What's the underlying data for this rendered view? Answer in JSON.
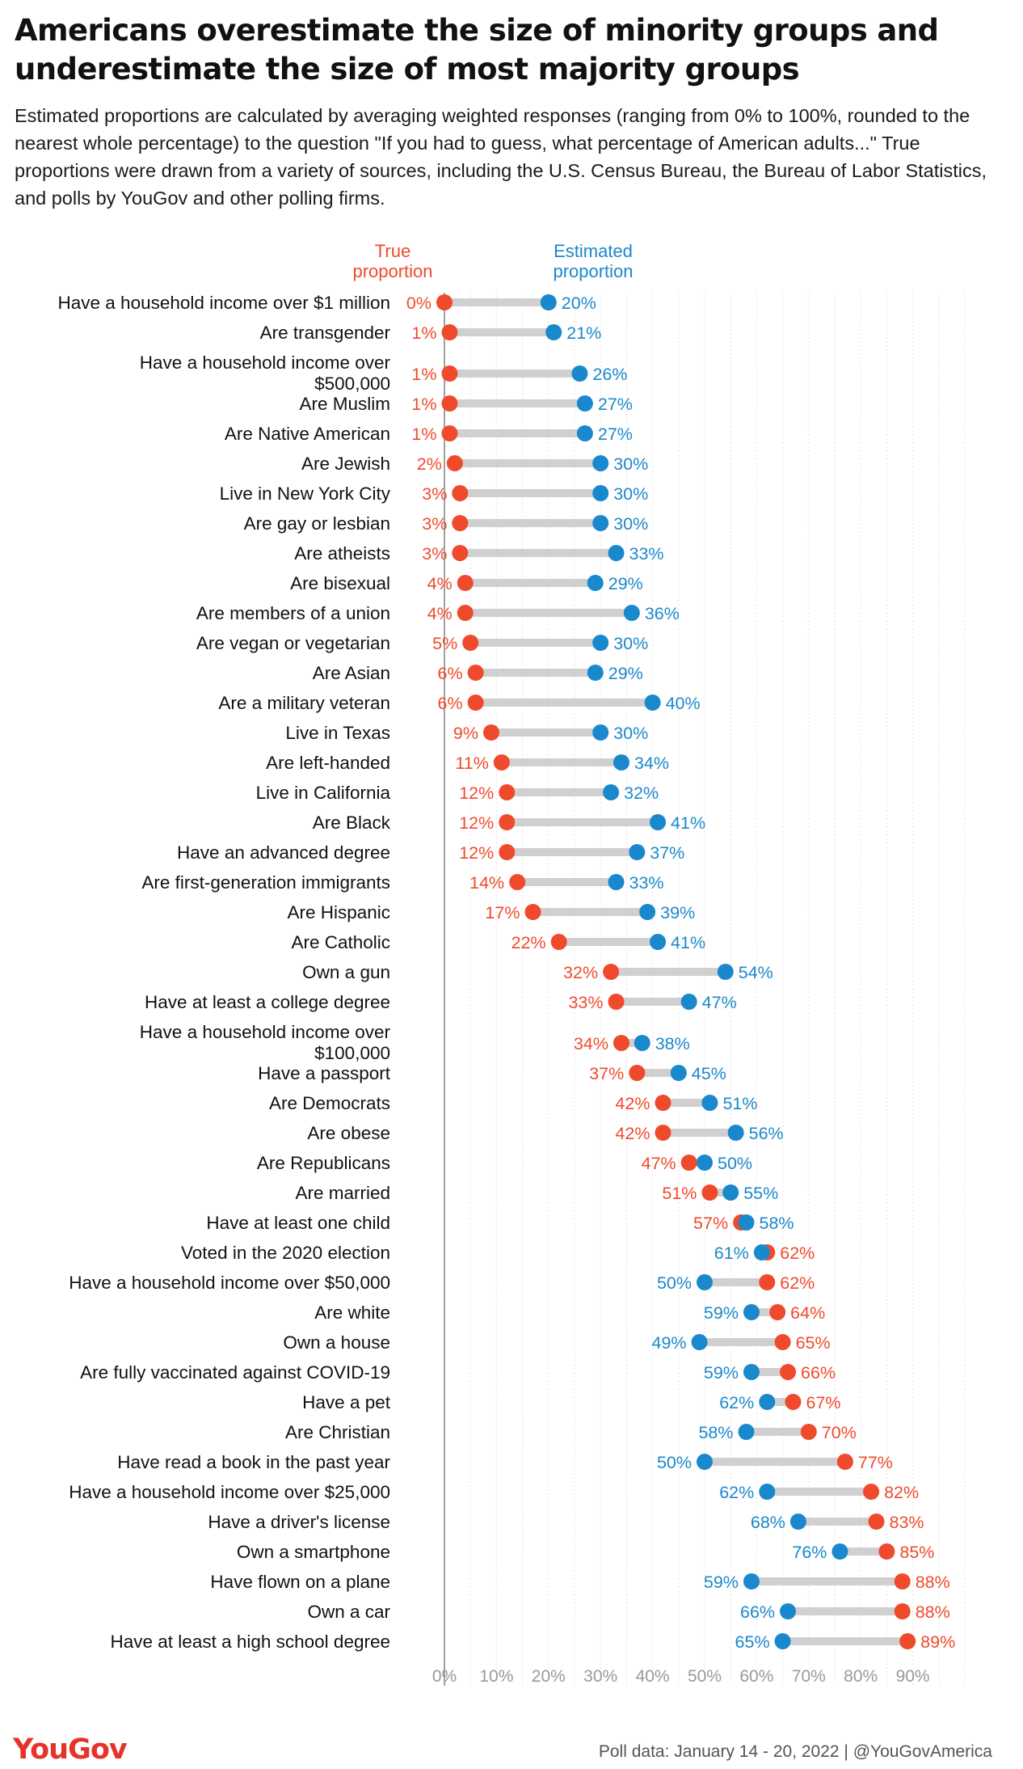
{
  "title": "Americans overestimate the size of minority groups and underestimate the size of most majority groups",
  "subtitle": "Estimated proportions are calculated by averaging weighted responses (ranging from 0% to 100%, rounded to the nearest whole percentage) to the question \"If you had to guess, what percentage of American adults...\" True proportions were drawn from a variety of sources, including the U.S. Census Bureau, the Bureau of Labor Statistics, and polls by YouGov and other polling firms.",
  "footer": {
    "logo": "YouGov",
    "source": "Poll data: January 14 - 20, 2022 | @YouGovAmerica"
  },
  "colors": {
    "true": "#f04a2c",
    "estimated": "#1a88cc",
    "connector": "#d0d0d0",
    "grid": "#e3e3e3",
    "axis": "#888888",
    "tick": "#999999"
  },
  "chart_data": {
    "type": "dumbbell",
    "x_axis": {
      "min": 0,
      "max": 100,
      "ticks": [
        0,
        10,
        20,
        30,
        40,
        50,
        60,
        70,
        80,
        90
      ],
      "tick_suffix": "%"
    },
    "legend": {
      "true": "True proportion",
      "estimated": "Estimated proportion"
    },
    "categories": [
      {
        "label": "Have a household income over $1 million",
        "true": 0,
        "estimated": 20
      },
      {
        "label": "Are transgender",
        "true": 1,
        "estimated": 21
      },
      {
        "label": "Have a household income over $500,000",
        "true": 1,
        "estimated": 26
      },
      {
        "label": "Are Muslim",
        "true": 1,
        "estimated": 27
      },
      {
        "label": "Are Native American",
        "true": 1,
        "estimated": 27
      },
      {
        "label": "Are Jewish",
        "true": 2,
        "estimated": 30
      },
      {
        "label": "Live in New York City",
        "true": 3,
        "estimated": 30
      },
      {
        "label": "Are gay or lesbian",
        "true": 3,
        "estimated": 30
      },
      {
        "label": "Are atheists",
        "true": 3,
        "estimated": 33
      },
      {
        "label": "Are bisexual",
        "true": 4,
        "estimated": 29
      },
      {
        "label": "Are members of a union",
        "true": 4,
        "estimated": 36
      },
      {
        "label": "Are vegan or vegetarian",
        "true": 5,
        "estimated": 30
      },
      {
        "label": "Are Asian",
        "true": 6,
        "estimated": 29
      },
      {
        "label": "Are a military veteran",
        "true": 6,
        "estimated": 40
      },
      {
        "label": "Live in Texas",
        "true": 9,
        "estimated": 30
      },
      {
        "label": "Are left-handed",
        "true": 11,
        "estimated": 34
      },
      {
        "label": "Live in California",
        "true": 12,
        "estimated": 32
      },
      {
        "label": "Are Black",
        "true": 12,
        "estimated": 41
      },
      {
        "label": "Have an advanced degree",
        "true": 12,
        "estimated": 37
      },
      {
        "label": "Are first-generation immigrants",
        "true": 14,
        "estimated": 33
      },
      {
        "label": "Are Hispanic",
        "true": 17,
        "estimated": 39
      },
      {
        "label": "Are Catholic",
        "true": 22,
        "estimated": 41
      },
      {
        "label": "Own a gun",
        "true": 32,
        "estimated": 54
      },
      {
        "label": "Have at least a college degree",
        "true": 33,
        "estimated": 47
      },
      {
        "label": "Have a household income over $100,000",
        "true": 34,
        "estimated": 38
      },
      {
        "label": "Have a passport",
        "true": 37,
        "estimated": 45
      },
      {
        "label": "Are Democrats",
        "true": 42,
        "estimated": 51
      },
      {
        "label": "Are obese",
        "true": 42,
        "estimated": 56
      },
      {
        "label": "Are Republicans",
        "true": 47,
        "estimated": 50
      },
      {
        "label": "Are married",
        "true": 51,
        "estimated": 55
      },
      {
        "label": "Have at least one child",
        "true": 57,
        "estimated": 58
      },
      {
        "label": "Voted in the 2020 election",
        "true": 62,
        "estimated": 61
      },
      {
        "label": "Have a household income over $50,000",
        "true": 62,
        "estimated": 50
      },
      {
        "label": "Are white",
        "true": 64,
        "estimated": 59
      },
      {
        "label": "Own a house",
        "true": 65,
        "estimated": 49
      },
      {
        "label": "Are fully vaccinated against COVID-19",
        "true": 66,
        "estimated": 59
      },
      {
        "label": "Have a pet",
        "true": 67,
        "estimated": 62
      },
      {
        "label": "Are Christian",
        "true": 70,
        "estimated": 58
      },
      {
        "label": "Have read a book in the past year",
        "true": 77,
        "estimated": 50
      },
      {
        "label": "Have a household income over $25,000",
        "true": 82,
        "estimated": 62
      },
      {
        "label": "Have a driver's license",
        "true": 83,
        "estimated": 68
      },
      {
        "label": "Own a smartphone",
        "true": 85,
        "estimated": 76
      },
      {
        "label": "Have flown on a plane",
        "true": 88,
        "estimated": 59
      },
      {
        "label": "Own a car",
        "true": 88,
        "estimated": 66
      },
      {
        "label": "Have at least a high school degree",
        "true": 89,
        "estimated": 65
      }
    ]
  }
}
